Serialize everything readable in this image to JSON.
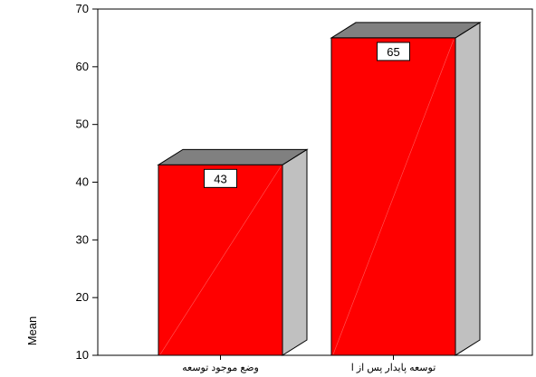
{
  "chart_data": {
    "type": "bar",
    "style": "3d",
    "categories": [
      "وضع موجود توسعه",
      "توسعه پایدار پس از ا"
    ],
    "values": [
      43,
      65
    ],
    "data_labels": [
      "43",
      "65"
    ],
    "ylabel": "Mean",
    "ylim": [
      10,
      70
    ],
    "yticks": [
      10,
      20,
      30,
      40,
      50,
      60,
      70
    ],
    "ytick_labels": [
      "10",
      "20",
      "30",
      "40",
      "50",
      "60",
      "70"
    ],
    "grid": false,
    "legend": "none",
    "colors": {
      "bar_front": "#ff0000",
      "bar_top": "#808080",
      "bar_side": "#c0c0c0",
      "axis": "#000000",
      "label_box": "#ffffff"
    }
  }
}
